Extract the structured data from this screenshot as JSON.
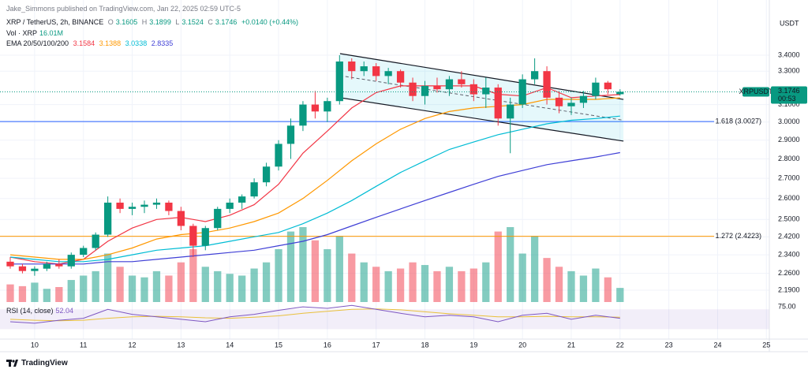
{
  "header": {
    "published": "Jake_Simmons published on TradingView.com, Jan 22, 2025 02:59 UTC-5",
    "symbol": "XRP / TetherUS, 2h, BINANCE",
    "ohlc_labels": [
      "O",
      "H",
      "L",
      "C"
    ],
    "ohlc": [
      "3.1605",
      "3.1899",
      "3.1524",
      "3.1746"
    ],
    "change": "+0.0140 (+0.44%)",
    "vol_label": "Vol · XRP",
    "vol_value": "16.01M",
    "ema_label": "EMA 20/50/100/200",
    "ema_values": [
      "3.1584",
      "3.1388",
      "3.0338",
      "2.8335"
    ],
    "rsi_label": "RSI (14, close)",
    "rsi_value": "52.04"
  },
  "footer": "TradingView",
  "chart_data": {
    "type": "candlestick",
    "currency": "USDT",
    "log_scale": true,
    "grid": true,
    "up_color": "#089981",
    "down_color": "#f23645",
    "xlim": [
      9.29,
      25.06
    ],
    "xticks": [
      10,
      11,
      12,
      13,
      14,
      15,
      16,
      17,
      18,
      19,
      20,
      21,
      22,
      23,
      24,
      25
    ],
    "ylim": [
      2.142,
      3.77
    ],
    "yticks": [
      {
        "value": 3.4,
        "label": "3.4000"
      },
      {
        "value": 3.3,
        "label": "3.3000"
      },
      {
        "value": 3.1,
        "label": "3.1000"
      },
      {
        "value": 3.0,
        "label": "3.0000"
      },
      {
        "value": 2.9,
        "label": "2.9000"
      },
      {
        "value": 2.8,
        "label": "2.8000"
      },
      {
        "value": 2.7,
        "label": "2.7000"
      },
      {
        "value": 2.6,
        "label": "2.6000"
      },
      {
        "value": 2.5,
        "label": "2.5000"
      },
      {
        "value": 2.42,
        "label": "2.4200"
      },
      {
        "value": 2.34,
        "label": "2.3400"
      },
      {
        "value": 2.26,
        "label": "2.2600"
      },
      {
        "value": 2.19,
        "label": "2.1900"
      }
    ],
    "x": [
      9.5,
      9.75,
      10,
      10.25,
      10.5,
      10.75,
      11,
      11.25,
      11.5,
      11.75,
      12,
      12.25,
      12.5,
      12.75,
      13,
      13.25,
      13.5,
      13.75,
      14,
      14.25,
      14.5,
      14.75,
      15,
      15.25,
      15.5,
      15.75,
      16,
      16.25,
      16.5,
      16.75,
      17,
      17.25,
      17.5,
      17.75,
      18,
      18.25,
      18.5,
      18.75,
      19,
      19.25,
      19.5,
      19.75,
      20,
      20.25,
      20.5,
      20.75,
      21,
      21.25,
      21.5,
      21.75,
      22
    ],
    "ohlc": [
      [
        2.31,
        2.33,
        2.28,
        2.29
      ],
      [
        2.29,
        2.3,
        2.26,
        2.27
      ],
      [
        2.27,
        2.29,
        2.25,
        2.28
      ],
      [
        2.28,
        2.31,
        2.27,
        2.3
      ],
      [
        2.3,
        2.32,
        2.28,
        2.29
      ],
      [
        2.29,
        2.35,
        2.28,
        2.34
      ],
      [
        2.34,
        2.38,
        2.33,
        2.37
      ],
      [
        2.37,
        2.44,
        2.36,
        2.43
      ],
      [
        2.43,
        2.61,
        2.42,
        2.58
      ],
      [
        2.58,
        2.6,
        2.53,
        2.55
      ],
      [
        2.55,
        2.58,
        2.52,
        2.56
      ],
      [
        2.56,
        2.59,
        2.53,
        2.57
      ],
      [
        2.57,
        2.6,
        2.55,
        2.58
      ],
      [
        2.58,
        2.59,
        2.52,
        2.54
      ],
      [
        2.54,
        2.56,
        2.45,
        2.47
      ],
      [
        2.47,
        2.48,
        2.33,
        2.38
      ],
      [
        2.38,
        2.47,
        2.36,
        2.46
      ],
      [
        2.46,
        2.56,
        2.45,
        2.55
      ],
      [
        2.55,
        2.6,
        2.53,
        2.58
      ],
      [
        2.58,
        2.62,
        2.55,
        2.61
      ],
      [
        2.61,
        2.7,
        2.6,
        2.68
      ],
      [
        2.68,
        2.78,
        2.66,
        2.76
      ],
      [
        2.76,
        2.9,
        2.74,
        2.88
      ],
      [
        2.88,
        3.02,
        2.8,
        2.98
      ],
      [
        2.98,
        3.12,
        2.95,
        3.1
      ],
      [
        3.1,
        3.18,
        3.02,
        3.06
      ],
      [
        3.06,
        3.14,
        3.0,
        3.12
      ],
      [
        3.12,
        3.4,
        3.1,
        3.36
      ],
      [
        3.36,
        3.38,
        3.25,
        3.3
      ],
      [
        3.3,
        3.36,
        3.27,
        3.33
      ],
      [
        3.33,
        3.35,
        3.24,
        3.27
      ],
      [
        3.27,
        3.32,
        3.22,
        3.3
      ],
      [
        3.3,
        3.31,
        3.2,
        3.23
      ],
      [
        3.23,
        3.26,
        3.12,
        3.15
      ],
      [
        3.15,
        3.24,
        3.1,
        3.21
      ],
      [
        3.21,
        3.26,
        3.17,
        3.19
      ],
      [
        3.19,
        3.27,
        3.15,
        3.25
      ],
      [
        3.25,
        3.3,
        3.2,
        3.22
      ],
      [
        3.22,
        3.25,
        3.12,
        3.16
      ],
      [
        3.16,
        3.26,
        3.08,
        3.2
      ],
      [
        3.2,
        3.22,
        2.98,
        3.02
      ],
      [
        3.02,
        3.14,
        2.83,
        3.1
      ],
      [
        3.1,
        3.28,
        3.08,
        3.25
      ],
      [
        3.25,
        3.38,
        3.22,
        3.3
      ],
      [
        3.3,
        3.33,
        3.1,
        3.14
      ],
      [
        3.14,
        3.18,
        3.05,
        3.09
      ],
      [
        3.09,
        3.14,
        3.04,
        3.11
      ],
      [
        3.11,
        3.18,
        3.08,
        3.15
      ],
      [
        3.15,
        3.26,
        3.13,
        3.23
      ],
      [
        3.23,
        3.24,
        3.16,
        3.19
      ],
      [
        3.1605,
        3.1899,
        3.1524,
        3.1746
      ]
    ],
    "volume": [
      20,
      18,
      22,
      15,
      17,
      25,
      30,
      35,
      55,
      40,
      30,
      28,
      35,
      30,
      45,
      60,
      40,
      35,
      32,
      30,
      38,
      45,
      60,
      80,
      85,
      70,
      60,
      75,
      55,
      45,
      40,
      35,
      38,
      45,
      42,
      35,
      40,
      35,
      38,
      45,
      80,
      85,
      55,
      75,
      50,
      40,
      35,
      30,
      38,
      28,
      16.01
    ],
    "indicator_x": [
      9.5,
      10,
      10.5,
      11,
      11.5,
      12,
      12.5,
      13,
      13.5,
      14,
      14.5,
      15,
      15.5,
      16,
      16.5,
      17,
      17.5,
      18,
      18.5,
      19,
      19.5,
      20,
      20.5,
      21,
      21.5,
      22
    ],
    "emas": [
      {
        "color": "#f23645",
        "values": [
          2.33,
          2.31,
          2.3,
          2.32,
          2.4,
          2.46,
          2.5,
          2.51,
          2.49,
          2.52,
          2.57,
          2.67,
          2.83,
          2.95,
          3.08,
          3.17,
          3.21,
          3.21,
          3.21,
          3.21,
          3.16,
          3.15,
          3.2,
          3.14,
          3.15,
          3.1584
        ]
      },
      {
        "color": "#ff9800",
        "values": [
          2.34,
          2.33,
          2.32,
          2.32,
          2.34,
          2.37,
          2.41,
          2.43,
          2.44,
          2.46,
          2.49,
          2.53,
          2.6,
          2.69,
          2.79,
          2.88,
          2.96,
          3.02,
          3.06,
          3.08,
          3.09,
          3.1,
          3.13,
          3.13,
          3.13,
          3.1388
        ]
      },
      {
        "color": "#00bcd4",
        "values": [
          2.33,
          2.32,
          2.31,
          2.31,
          2.32,
          2.34,
          2.36,
          2.37,
          2.38,
          2.4,
          2.42,
          2.44,
          2.48,
          2.53,
          2.59,
          2.66,
          2.73,
          2.79,
          2.85,
          2.89,
          2.93,
          2.96,
          2.99,
          3.01,
          3.02,
          3.0338
        ]
      },
      {
        "color": "#3f3fd6",
        "values": [
          2.3,
          2.3,
          2.3,
          2.3,
          2.31,
          2.31,
          2.32,
          2.33,
          2.34,
          2.35,
          2.36,
          2.38,
          2.4,
          2.43,
          2.47,
          2.51,
          2.55,
          2.59,
          2.63,
          2.67,
          2.71,
          2.74,
          2.77,
          2.79,
          2.81,
          2.8335
        ]
      }
    ],
    "fib_levels": [
      {
        "value": 3.0027,
        "label": "1.618 (3.0027)",
        "color": "#2962ff"
      },
      {
        "value": 2.4223,
        "label": "1.272 (2.4223)",
        "color": "#ff9800"
      }
    ],
    "channel": {
      "x": [
        16.26,
        22.07
      ],
      "upper": [
        3.41,
        3.13
      ],
      "lower": [
        3.14,
        2.895
      ]
    },
    "price_tag": {
      "symbol": "XRPUSDT",
      "price": "3.1746",
      "countdown": "00:53"
    },
    "rsi": {
      "ylim": [
        10,
        80
      ],
      "yticks": [
        {
          "value": 75,
          "label": "75.00"
        }
      ],
      "band": [
        30,
        70
      ],
      "color": "#7e57c2",
      "ma_color": "#e9c03b",
      "values": [
        45,
        42,
        48,
        52,
        70,
        60,
        55,
        50,
        45,
        55,
        60,
        68,
        75,
        72,
        78,
        70,
        62,
        55,
        58,
        55,
        45,
        58,
        62,
        50,
        58,
        52.04
      ],
      "ma": [
        50,
        48,
        47,
        48,
        52,
        55,
        56,
        55,
        53,
        52,
        54,
        57,
        62,
        66,
        70,
        71,
        69,
        65,
        61,
        58,
        55,
        55,
        56,
        55,
        55,
        54
      ]
    }
  }
}
